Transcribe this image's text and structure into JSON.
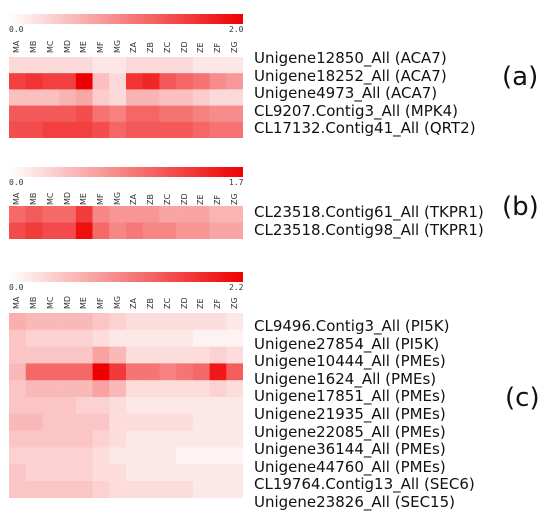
{
  "chart_data": [
    {
      "type": "heatmap",
      "panel_label": "(a)",
      "color_scale": {
        "min": 0.0,
        "max": 2.0,
        "min_label": "0.0",
        "max_label": "2.0",
        "low_color": "#ffffff",
        "high_color": "#ee0000"
      },
      "columns": [
        "MA",
        "MB",
        "MC",
        "MD",
        "ME",
        "MF",
        "MG",
        "ZA",
        "ZB",
        "ZC",
        "ZD",
        "ZE",
        "ZF",
        "ZG"
      ],
      "rows": [
        {
          "label": "Unigene12850_All (ACA7)",
          "values": [
            0.3,
            0.3,
            0.3,
            0.3,
            0.3,
            0.2,
            0.2,
            0.3,
            0.3,
            0.3,
            0.3,
            0.2,
            0.2,
            0.2
          ]
        },
        {
          "label": "Unigene18252_All (ACA7)",
          "values": [
            1.5,
            1.6,
            1.5,
            1.5,
            2.0,
            0.5,
            0.3,
            1.6,
            1.7,
            1.3,
            1.2,
            1.1,
            0.9,
            0.8
          ]
        },
        {
          "label": "Unigene4973_All (ACA7)",
          "values": [
            0.5,
            0.5,
            0.5,
            0.6,
            0.7,
            0.4,
            0.3,
            0.6,
            0.6,
            0.5,
            0.5,
            0.4,
            0.3,
            0.3
          ]
        },
        {
          "label": "CL9207.Contig3_All (MPK4)",
          "values": [
            1.3,
            1.3,
            1.3,
            1.3,
            1.4,
            1.1,
            1.0,
            1.2,
            1.2,
            1.1,
            1.1,
            1.0,
            0.9,
            0.9
          ]
        },
        {
          "label": "CL17132.Contig41_All (QRT2)",
          "values": [
            1.4,
            1.4,
            1.5,
            1.5,
            1.5,
            1.4,
            1.2,
            1.3,
            1.3,
            1.3,
            1.3,
            1.2,
            1.1,
            1.1
          ]
        }
      ]
    },
    {
      "type": "heatmap",
      "panel_label": "(b)",
      "color_scale": {
        "min": 0.0,
        "max": 1.7,
        "min_label": "0.0",
        "max_label": "1.7",
        "low_color": "#ffffff",
        "high_color": "#ee0000"
      },
      "columns": [
        "MA",
        "MB",
        "MC",
        "MD",
        "ME",
        "MF",
        "MG",
        "ZA",
        "ZB",
        "ZC",
        "ZD",
        "ZE",
        "ZF",
        "ZG"
      ],
      "rows": [
        {
          "label": "CL23518.Contig61_All (TKPR1)",
          "values": [
            1.0,
            1.1,
            1.0,
            1.0,
            1.3,
            0.8,
            0.7,
            0.7,
            0.7,
            0.6,
            0.6,
            0.6,
            0.5,
            0.5
          ]
        },
        {
          "label": "CL23518.Contig98_All (TKPR1)",
          "values": [
            1.2,
            1.3,
            1.2,
            1.2,
            1.6,
            1.0,
            0.8,
            0.9,
            0.8,
            0.8,
            0.7,
            0.7,
            0.6,
            0.6
          ]
        }
      ]
    },
    {
      "type": "heatmap",
      "panel_label": "(c)",
      "color_scale": {
        "min": 0.0,
        "max": 2.2,
        "min_label": "0.0",
        "max_label": "2.2",
        "low_color": "#ffffff",
        "high_color": "#ee0000"
      },
      "columns": [
        "MA",
        "MB",
        "MC",
        "MD",
        "ME",
        "MF",
        "MG",
        "ZA",
        "ZB",
        "ZC",
        "ZD",
        "ZE",
        "ZF",
        "ZG"
      ],
      "rows": [
        {
          "label": "CL9496.Contig3_All (PI5K)",
          "values": [
            0.7,
            0.6,
            0.6,
            0.6,
            0.6,
            0.5,
            0.4,
            0.3,
            0.3,
            0.3,
            0.3,
            0.3,
            0.3,
            0.2
          ]
        },
        {
          "label": "Unigene27854_All (PI5K)",
          "values": [
            0.5,
            0.4,
            0.4,
            0.4,
            0.4,
            0.3,
            0.2,
            0.2,
            0.2,
            0.2,
            0.2,
            0.1,
            0.1,
            0.1
          ]
        },
        {
          "label": "Unigene10444_All (PMEs)",
          "values": [
            0.5,
            0.5,
            0.5,
            0.5,
            0.5,
            0.8,
            0.6,
            0.3,
            0.3,
            0.3,
            0.3,
            0.3,
            0.4,
            0.3
          ]
        },
        {
          "label": "Unigene1624_All (PMEs)",
          "values": [
            0.6,
            1.3,
            1.3,
            1.3,
            1.3,
            2.2,
            1.7,
            1.2,
            1.2,
            1.1,
            1.2,
            1.3,
            2.0,
            1.4
          ]
        },
        {
          "label": "Unigene17851_All (PMEs)",
          "values": [
            0.5,
            0.6,
            0.6,
            0.6,
            0.6,
            0.8,
            0.6,
            0.3,
            0.3,
            0.3,
            0.3,
            0.3,
            0.4,
            0.3
          ]
        },
        {
          "label": "Unigene21935_All (PMEs)",
          "values": [
            0.5,
            0.5,
            0.5,
            0.5,
            0.4,
            0.4,
            0.3,
            0.2,
            0.2,
            0.2,
            0.2,
            0.2,
            0.2,
            0.2
          ]
        },
        {
          "label": "Unigene22085_All (PMEs)",
          "values": [
            0.6,
            0.6,
            0.5,
            0.5,
            0.5,
            0.5,
            0.3,
            0.3,
            0.3,
            0.3,
            0.3,
            0.2,
            0.2,
            0.2
          ]
        },
        {
          "label": "Unigene36144_All (PMEs)",
          "values": [
            0.5,
            0.5,
            0.5,
            0.5,
            0.5,
            0.4,
            0.3,
            0.2,
            0.2,
            0.2,
            0.2,
            0.2,
            0.2,
            0.2
          ]
        },
        {
          "label": "Unigene44760_All (PMEs)",
          "values": [
            0.4,
            0.4,
            0.4,
            0.4,
            0.4,
            0.3,
            0.2,
            0.2,
            0.2,
            0.2,
            0.1,
            0.1,
            0.1,
            0.1
          ]
        },
        {
          "label": "CL19764.Contig13_All (SEC6)",
          "values": [
            0.5,
            0.4,
            0.4,
            0.4,
            0.4,
            0.3,
            0.3,
            0.2,
            0.2,
            0.2,
            0.2,
            0.2,
            0.2,
            0.2
          ]
        },
        {
          "label": "Unigene23826_All (SEC15)",
          "values": [
            0.5,
            0.5,
            0.5,
            0.5,
            0.5,
            0.4,
            0.3,
            0.3,
            0.3,
            0.3,
            0.3,
            0.2,
            0.2,
            0.2
          ]
        }
      ]
    }
  ]
}
